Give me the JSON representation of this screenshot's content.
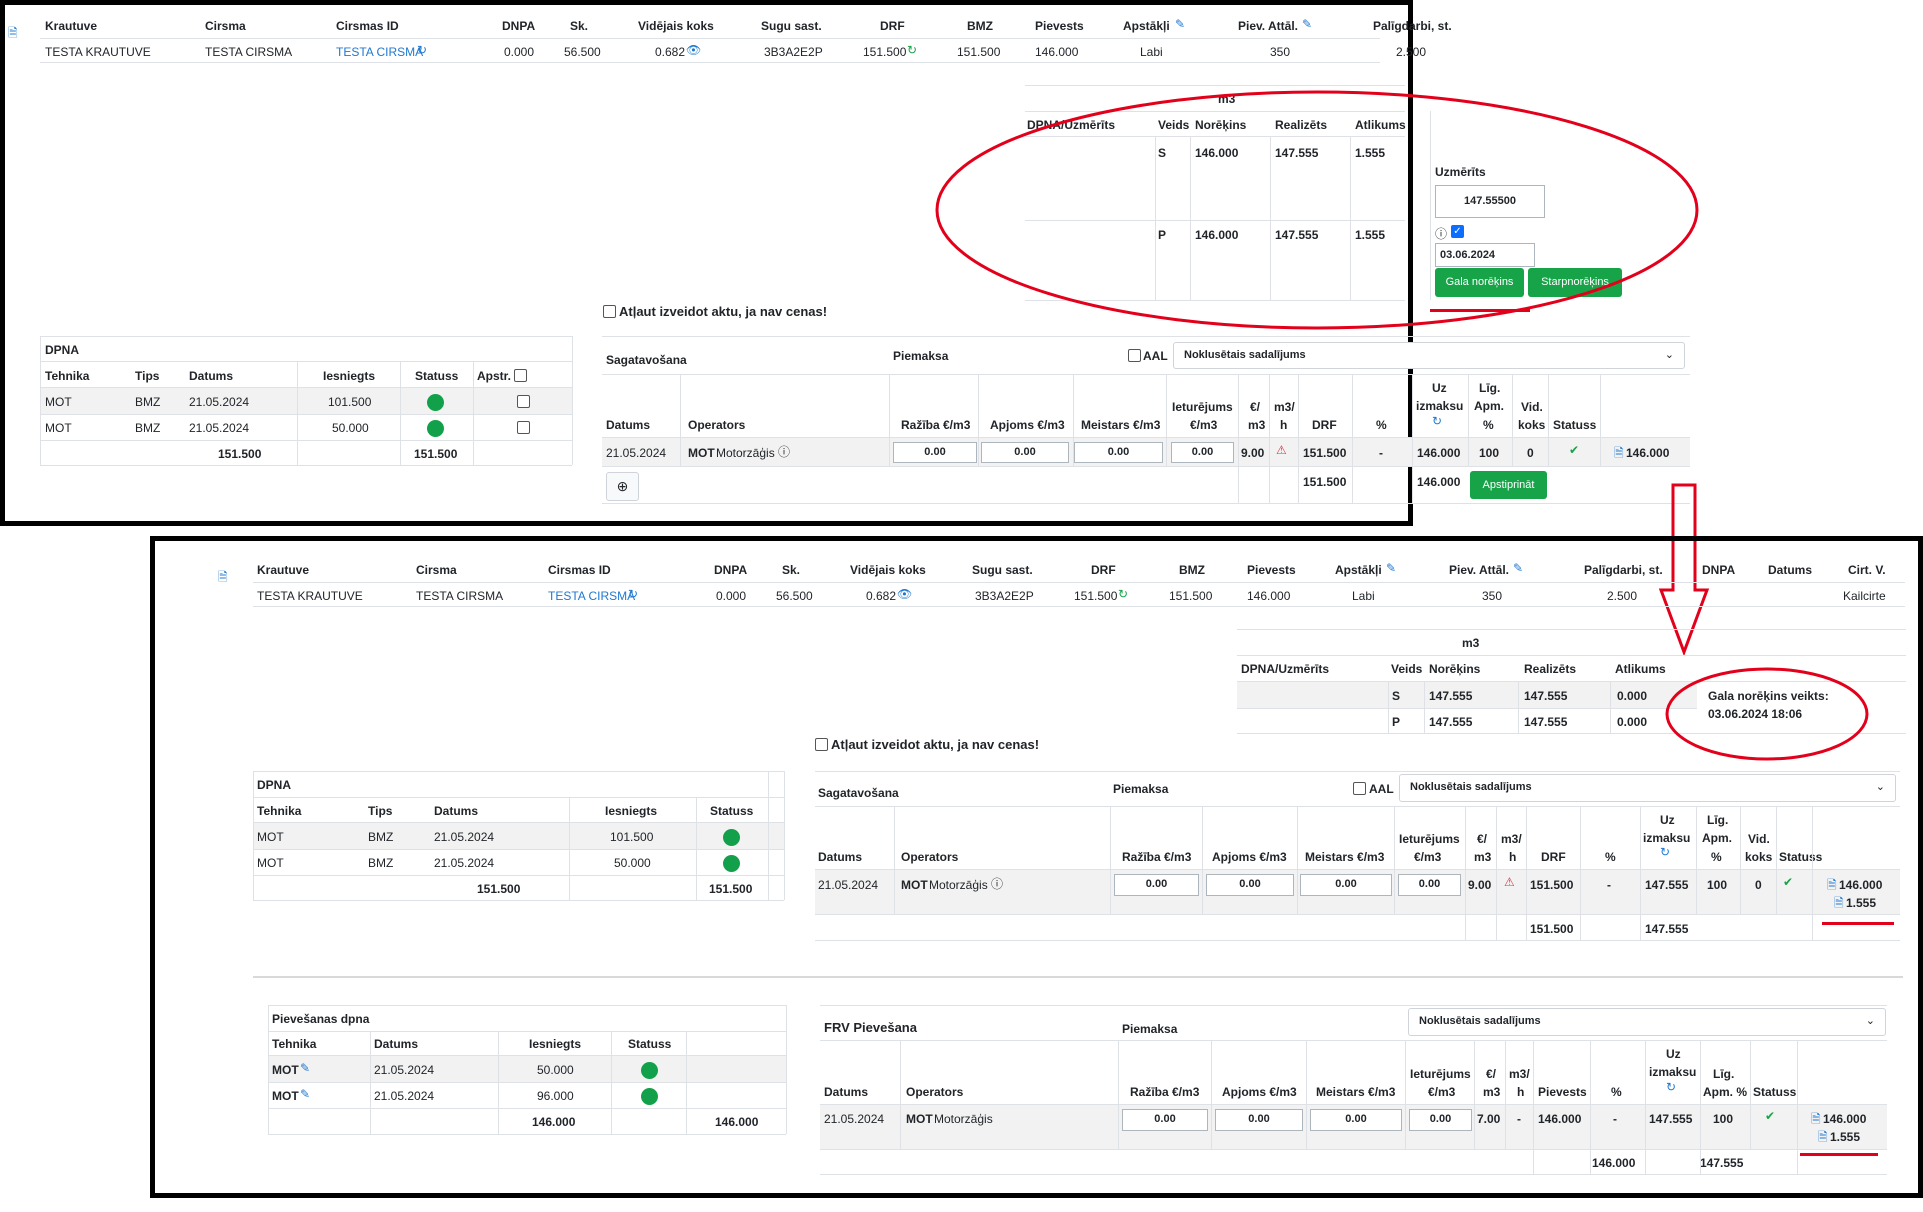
{
  "cols": {
    "krautuve": "Krautuve",
    "cirsma": "Cirsma",
    "cirsmas_id": "Cirsmas ID",
    "dnpa": "DNPA",
    "sk": "Sk.",
    "videjais": "Vidējais koks",
    "sugu": "Sugu sast.",
    "drf": "DRF",
    "bmz": "BMZ",
    "pievests": "Pievests",
    "apstakli": "Apstākļi",
    "piev_attal": "Piev. Attāl.",
    "paligdarbi": "Palīgdarbi, st.",
    "dnpa2": "DNPA",
    "datums": "Datums",
    "cirt_v": "Cirt. V."
  },
  "row": {
    "krautuve": "TESTA KRAUTUVE",
    "cirsma": "TESTA CIRSMA",
    "cirsmas_id": "TESTA CIRSMA",
    "dnpa": "0.000",
    "sk": "56.500",
    "videjais": "0.682",
    "sugu": "3B3A2E2P",
    "drf": "151.500",
    "bmz": "151.500",
    "pievests": "146.000",
    "apstakli": "Labi",
    "piev_attal": "350",
    "paligdarbi": "2.500",
    "cirt_v": "Kailcirte"
  },
  "m3": {
    "title": "m3",
    "h_dpna": "DPNA/Uzmērīts",
    "h_veids": "Veids",
    "h_noreks": "Norēķins",
    "h_realiz": "Realizēts",
    "h_atlik": "Atlikums",
    "rows_top": [
      {
        "veids": "S",
        "noreks": "146.000",
        "realiz": "147.555",
        "atlik": "1.555"
      },
      {
        "veids": "P",
        "noreks": "146.000",
        "realiz": "147.555",
        "atlik": "1.555"
      }
    ],
    "rows_bottom": [
      {
        "veids": "S",
        "noreks": "147.555",
        "realiz": "147.555",
        "atlik": "0.000"
      },
      {
        "veids": "P",
        "noreks": "147.555",
        "realiz": "147.555",
        "atlik": "0.000"
      }
    ],
    "uzmerits_label": "Uzmērīts",
    "uzmerits_value": "147.55500",
    "date_value": "03.06.2024",
    "btn_gala": "Gala norēķins",
    "btn_starp": "Starpnorēķins",
    "gala_done_line1": "Gala norēķins veikts:",
    "gala_done_line2": "03.06.2024 18:06"
  },
  "atlaut": "Atļaut izveidot aktu, ja nav cenas!",
  "dpna": {
    "title": "DPNA",
    "h_tehnika": "Tehnika",
    "h_tips": "Tips",
    "h_datums": "Datums",
    "h_iesniegts": "Iesniegts",
    "h_statuss": "Statuss",
    "h_apstr": "Apstr.",
    "rows": [
      {
        "tehnika": "MOT",
        "tips": "BMZ",
        "datums": "21.05.2024",
        "iesniegts": "101.500"
      },
      {
        "tehnika": "MOT",
        "tips": "BMZ",
        "datums": "21.05.2024",
        "iesniegts": "50.000"
      }
    ],
    "total1": "151.500",
    "total2": "151.500"
  },
  "sag": {
    "title": "Sagatavošana",
    "piemaksa": "Piemaksa",
    "aal": "AAL",
    "select": "Noklusētais sadalījums",
    "h_datums": "Datums",
    "h_operators": "Operators",
    "h_raziba": "Ražība €/m3",
    "h_apjoms": "Apjoms €/m3",
    "h_meistars": "Meistars €/m3",
    "h_ietur1": "Ieturējums",
    "h_ietur2": "€/m3",
    "h_eur1": "€/",
    "h_eur2": "m3",
    "h_m3h1": "m3/",
    "h_m3h2": "h",
    "h_drf": "DRF",
    "h_pct": "%",
    "h_uz1": "Uz",
    "h_uz2": "izmaksu",
    "h_lig1": "Līg.",
    "h_lig2": "Apm.",
    "h_lig3": "%",
    "h_vid1": "Vid.",
    "h_vid2": "koks",
    "h_statuss": "Statuss",
    "row_datums": "21.05.2024",
    "row_op_b": "MOT",
    "row_op": "Motorzāģis",
    "inp": "0.00",
    "row_eur": "9.00",
    "row_drf": "151.500",
    "row_pct": "-",
    "row_vid": "0",
    "top_uz": "146.000",
    "top_lig": "100",
    "top_doc": "146.000",
    "bot_uz": "147.555",
    "bot_lig": "100",
    "bot_doc1": "146.000",
    "bot_doc2": "1.555",
    "top_tot_drf": "151.500",
    "top_tot_uz": "146.000",
    "btn_apst": "Apstiprināt",
    "bot_tot_drf": "151.500",
    "bot_tot_uz": "147.555"
  },
  "piev": {
    "title": "Pievešanas dpna",
    "h_tehnika": "Tehnika",
    "h_datums": "Datums",
    "h_iesniegts": "Iesniegts",
    "h_statuss": "Statuss",
    "rows": [
      {
        "tehnika": "MOT",
        "datums": "21.05.2024",
        "iesniegts": "50.000"
      },
      {
        "tehnika": "MOT",
        "datums": "21.05.2024",
        "iesniegts": "96.000"
      }
    ],
    "total1": "146.000",
    "total2": "146.000"
  },
  "frv": {
    "title": "FRV Pievešana",
    "piemaksa": "Piemaksa",
    "select": "Noklusētais sadalījums",
    "h_datums": "Datums",
    "h_operators": "Operators",
    "h_raziba": "Ražība €/m3",
    "h_apjoms": "Apjoms €/m3",
    "h_meistars": "Meistars €/m3",
    "h_ietur1": "Ieturējums",
    "h_ietur2": "€/m3",
    "h_eur1": "€/",
    "h_eur2": "m3",
    "h_m3h1": "m3/",
    "h_m3h2": "h",
    "h_piev": "Pievests",
    "h_pct": "%",
    "h_uz1": "Uz",
    "h_uz2": "izmaksu",
    "h_lig1": "Līg.",
    "h_lig2": "Apm. %",
    "h_statuss": "Statuss",
    "row_datums": "21.05.2024",
    "row_op_b": "MOT",
    "row_op": "Motorzāģis",
    "inp": "0.00",
    "row_eur": "7.00",
    "row_m3h": "-",
    "row_piev": "146.000",
    "row_pct": "-",
    "row_uz": "147.555",
    "row_lig": "100",
    "doc1": "146.000",
    "doc2": "1.555",
    "tot_piev": "146.000",
    "tot_uz": "147.555"
  },
  "colors": {
    "accent_green": "#17a348",
    "link_blue": "#1f78d1",
    "annotation_red": "#e3001b"
  }
}
